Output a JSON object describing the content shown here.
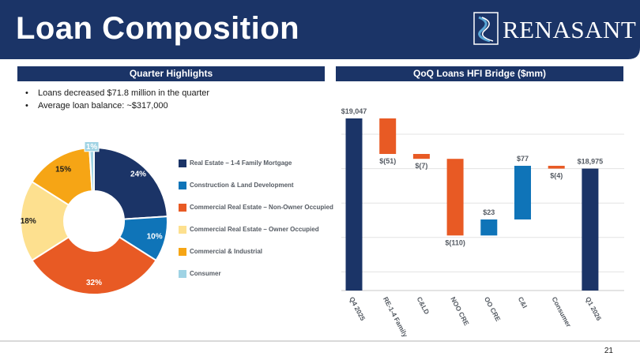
{
  "slide": {
    "title": "Loan Composition",
    "logo_text": "RENASANT",
    "page_number": "21"
  },
  "left_panel": {
    "heading": "Quarter Highlights",
    "bullets": [
      "Loans decreased $71.8 million in the quarter",
      "Average loan balance: ~$317,000"
    ]
  },
  "right_panel": {
    "heading": "QoQ Loans HFI Bridge ($mm)"
  },
  "colors": {
    "navy": "#1b3467",
    "blue": "#0f74b8",
    "orange": "#e85a24",
    "light_yellow": "#fde08f",
    "gold": "#f6a515",
    "light_blue": "#9fd3e4"
  },
  "chart_data": [
    {
      "type": "pie",
      "variant": "donut",
      "slices": [
        {
          "name": "Real Estate – 1-4 Family Mortgage",
          "value": 24,
          "label": "24%",
          "color": "#1b3467"
        },
        {
          "name": "Construction & Land Development",
          "value": 10,
          "label": "10%",
          "color": "#0f74b8"
        },
        {
          "name": "Commercial Real Estate – Non-Owner Occupied",
          "value": 32,
          "label": "32%",
          "color": "#e85a24"
        },
        {
          "name": "Commercial Real Estate – Owner Occupied",
          "value": 18,
          "label": "18%",
          "color": "#fde08f"
        },
        {
          "name": "Commercial & Industrial",
          "value": 15,
          "label": "15%",
          "color": "#f6a515"
        },
        {
          "name": "Consumer",
          "value": 1,
          "label": "1%",
          "color": "#9fd3e4"
        }
      ],
      "legend_position": "right"
    },
    {
      "type": "bar",
      "variant": "waterfall",
      "categories": [
        "Q4 2025",
        "RE-1-4 Family",
        "C&LD",
        "NOO CRE",
        "OO CRE",
        "C&I",
        "Consumer",
        "Q1 2026"
      ],
      "values": [
        19047,
        -51,
        -7,
        -110,
        23,
        77,
        -4,
        18975
      ],
      "labels": [
        "$19,047",
        "$(51)",
        "$(7)",
        "$(110)",
        "$23",
        "$77",
        "$(4)",
        "$18,975"
      ],
      "kinds": [
        "total",
        "delta",
        "delta",
        "delta",
        "delta",
        "delta",
        "delta",
        "total"
      ],
      "grid": true,
      "legend": "none"
    }
  ]
}
